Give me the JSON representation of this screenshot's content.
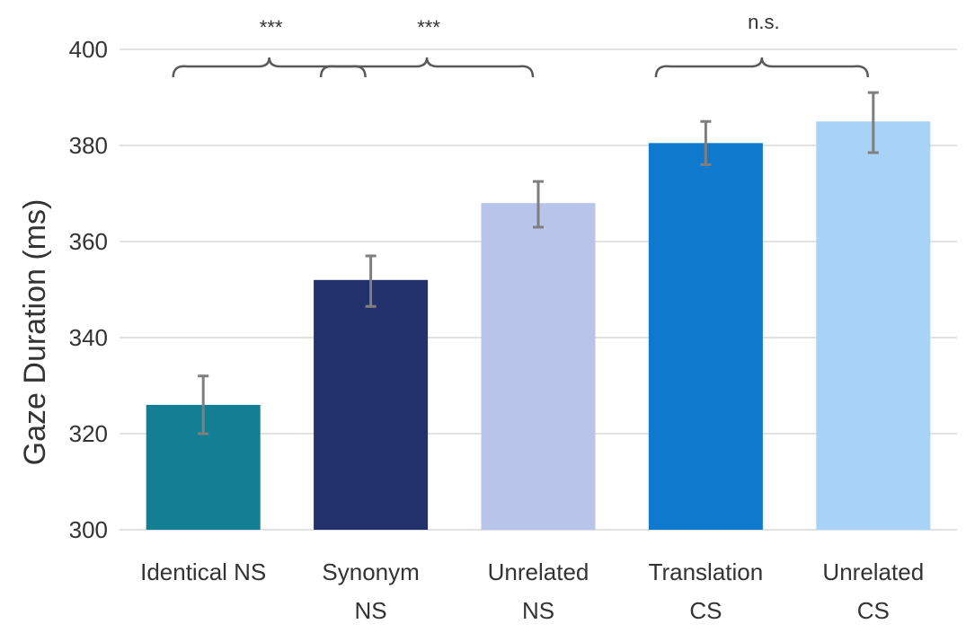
{
  "chart_data": {
    "type": "bar",
    "ylabel": "Gaze Duration (ms)",
    "xlabel": "",
    "title": "",
    "ylim": [
      300,
      400
    ],
    "yticks": [
      300,
      320,
      340,
      360,
      380,
      400
    ],
    "grid": true,
    "legend": "none",
    "categories": [
      [
        "Identical NS"
      ],
      [
        "Synonym",
        "NS"
      ],
      [
        "Unrelated",
        "NS"
      ],
      [
        "Translation",
        "CS"
      ],
      [
        "Unrelated",
        "CS"
      ]
    ],
    "values": [
      326,
      352,
      368,
      380.5,
      385
    ],
    "error_low": [
      320,
      346.5,
      363,
      376,
      378.5
    ],
    "error_high": [
      332,
      357,
      372.5,
      385,
      391
    ],
    "colors": [
      "#137f95",
      "#22306b",
      "#b8c4e9",
      "#0f7acd",
      "#a8d3f6"
    ],
    "annotations": [
      {
        "label": "***",
        "from": 0,
        "to": 2
      },
      {
        "label": "***",
        "from": 2,
        "to": 4
      },
      {
        "label": "n.s.",
        "from": 6,
        "to": 8
      }
    ]
  }
}
